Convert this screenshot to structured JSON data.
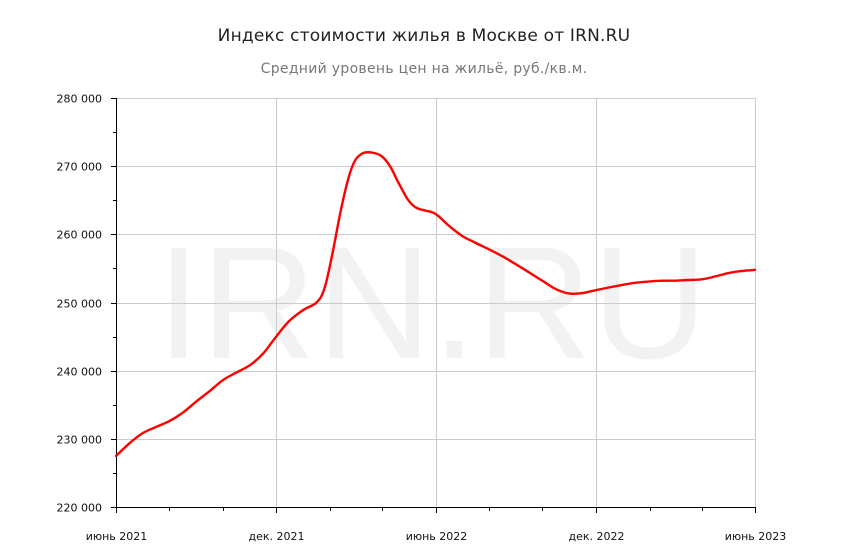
{
  "chart_data": {
    "type": "line",
    "title": "Индекс стоимости жилья в Москве от IRN.RU",
    "subtitle": "Средний уровень цен на жильё, руб./кв.м.",
    "watermark": "IRN.RU",
    "xlabel": "",
    "ylabel": "",
    "ylim": [
      220000,
      280000
    ],
    "y_ticks": [
      {
        "value": 220000,
        "label": "220 000"
      },
      {
        "value": 230000,
        "label": "230 000"
      },
      {
        "value": 240000,
        "label": "240 000"
      },
      {
        "value": 250000,
        "label": "250 000"
      },
      {
        "value": 260000,
        "label": "260 000"
      },
      {
        "value": 270000,
        "label": "270 000"
      },
      {
        "value": 280000,
        "label": "280 000"
      }
    ],
    "x_ticks": [
      {
        "date": "2021-06",
        "label": "июнь 2021"
      },
      {
        "date": "2021-12",
        "label": "дек. 2021"
      },
      {
        "date": "2022-06",
        "label": "июнь 2022"
      },
      {
        "date": "2022-12",
        "label": "дек. 2022"
      },
      {
        "date": "2023-06",
        "label": "июнь 2023"
      }
    ],
    "xlim": [
      "2021-06-01",
      "2023-06-01"
    ],
    "grid": true,
    "line_color": "#ff0000",
    "series": [
      {
        "points": [
          [
            "2021-06-01",
            227500
          ],
          [
            "2021-06-16",
            229300
          ],
          [
            "2021-07-01",
            230800
          ],
          [
            "2021-07-16",
            231700
          ],
          [
            "2021-08-01",
            232600
          ],
          [
            "2021-08-16",
            233800
          ],
          [
            "2021-09-01",
            235500
          ],
          [
            "2021-09-16",
            237000
          ],
          [
            "2021-10-01",
            238600
          ],
          [
            "2021-10-16",
            239700
          ],
          [
            "2021-11-01",
            240800
          ],
          [
            "2021-11-16",
            242500
          ],
          [
            "2021-12-01",
            245000
          ],
          [
            "2021-12-16",
            247300
          ],
          [
            "2022-01-01",
            248900
          ],
          [
            "2022-01-16",
            250000
          ],
          [
            "2022-01-25",
            252000
          ],
          [
            "2022-02-03",
            257000
          ],
          [
            "2022-02-12",
            263000
          ],
          [
            "2022-02-21",
            268000
          ],
          [
            "2022-03-01",
            270800
          ],
          [
            "2022-03-10",
            271900
          ],
          [
            "2022-03-20",
            272000
          ],
          [
            "2022-03-31",
            271500
          ],
          [
            "2022-04-10",
            270000
          ],
          [
            "2022-04-20",
            267500
          ],
          [
            "2022-05-01",
            265000
          ],
          [
            "2022-05-10",
            263900
          ],
          [
            "2022-05-20",
            263500
          ],
          [
            "2022-06-01",
            263000
          ],
          [
            "2022-06-16",
            261300
          ],
          [
            "2022-07-01",
            259800
          ],
          [
            "2022-07-16",
            258800
          ],
          [
            "2022-08-01",
            257800
          ],
          [
            "2022-08-16",
            256800
          ],
          [
            "2022-09-01",
            255600
          ],
          [
            "2022-09-16",
            254400
          ],
          [
            "2022-10-01",
            253200
          ],
          [
            "2022-10-16",
            252000
          ],
          [
            "2022-11-01",
            251300
          ],
          [
            "2022-11-16",
            251400
          ],
          [
            "2022-12-01",
            251800
          ],
          [
            "2022-12-16",
            252200
          ],
          [
            "2023-01-01",
            252600
          ],
          [
            "2023-01-16",
            252900
          ],
          [
            "2023-02-01",
            253100
          ],
          [
            "2023-02-16",
            253200
          ],
          [
            "2023-03-01",
            253200
          ],
          [
            "2023-03-16",
            253300
          ],
          [
            "2023-04-01",
            253400
          ],
          [
            "2023-04-16",
            253800
          ],
          [
            "2023-05-01",
            254300
          ],
          [
            "2023-05-16",
            254600
          ],
          [
            "2023-06-01",
            254800
          ]
        ]
      }
    ]
  }
}
